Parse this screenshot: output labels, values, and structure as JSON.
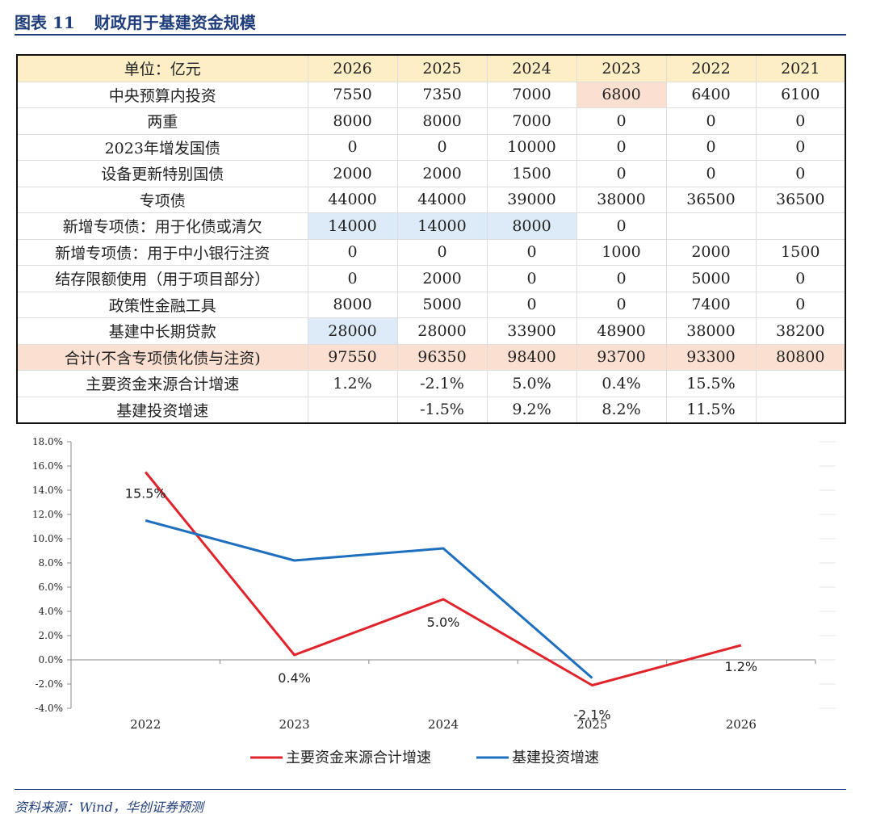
{
  "figure": {
    "number": "图表 11",
    "title": "财政用于基建资金规模"
  },
  "source": "资料来源：Wind，华创证券预测",
  "table": {
    "header": [
      "单位：亿元",
      "2026",
      "2025",
      "2024",
      "2023",
      "2022",
      "2021"
    ],
    "rows": [
      [
        "中央预算内投资",
        "7550",
        "7350",
        "7000",
        "6800",
        "6400",
        "6100"
      ],
      [
        "两重",
        "8000",
        "8000",
        "7000",
        "0",
        "0",
        "0"
      ],
      [
        "2023年增发国债",
        "0",
        "0",
        "10000",
        "0",
        "0",
        "0"
      ],
      [
        "设备更新特别国债",
        "2000",
        "2000",
        "1500",
        "0",
        "0",
        "0"
      ],
      [
        "专项债",
        "44000",
        "44000",
        "39000",
        "38000",
        "36500",
        "36500"
      ],
      [
        "新增专项债：用于化债或清欠",
        "14000",
        "14000",
        "8000",
        "0",
        "",
        ""
      ],
      [
        "新增专项债：用于中小银行注资",
        "0",
        "0",
        "0",
        "1000",
        "2000",
        "1500"
      ],
      [
        "结存限额使用（用于项目部分）",
        "0",
        "2000",
        "0",
        "0",
        "5000",
        "0"
      ],
      [
        "政策性金融工具",
        "8000",
        "5000",
        "0",
        "0",
        "7400",
        "0"
      ],
      [
        "基建中长期贷款",
        "28000",
        "28000",
        "33900",
        "48900",
        "38000",
        "38200"
      ],
      [
        "合计(不含专项债化债与注资)",
        "97550",
        "96350",
        "98400",
        "93700",
        "93300",
        "80800"
      ],
      [
        "主要资金来源合计增速",
        "1.2%",
        "-2.1%",
        "5.0%",
        "0.4%",
        "15.5%",
        ""
      ],
      [
        "基建投资增速",
        "",
        "-1.5%",
        "9.2%",
        "8.2%",
        "11.5%",
        ""
      ]
    ]
  },
  "chart_data": {
    "type": "line",
    "x": [
      "2022",
      "2023",
      "2024",
      "2025",
      "2026"
    ],
    "ylim": [
      -4,
      18
    ],
    "yticks": [
      "-4.0%",
      "-2.0%",
      "0.0%",
      "2.0%",
      "4.0%",
      "6.0%",
      "8.0%",
      "10.0%",
      "12.0%",
      "14.0%",
      "16.0%",
      "18.0%"
    ],
    "series": [
      {
        "name": "主要资金来源合计增速",
        "color": "#e0242b",
        "values": [
          15.5,
          0.4,
          5.0,
          -2.1,
          1.2
        ],
        "labels": [
          "15.5%",
          "0.4%",
          "5.0%",
          "-2.1%",
          "1.2%"
        ]
      },
      {
        "name": "基建投资增速",
        "color": "#1f6fbf",
        "values": [
          11.5,
          8.2,
          9.2,
          -1.5,
          null
        ]
      }
    ],
    "legend_position": "bottom"
  }
}
